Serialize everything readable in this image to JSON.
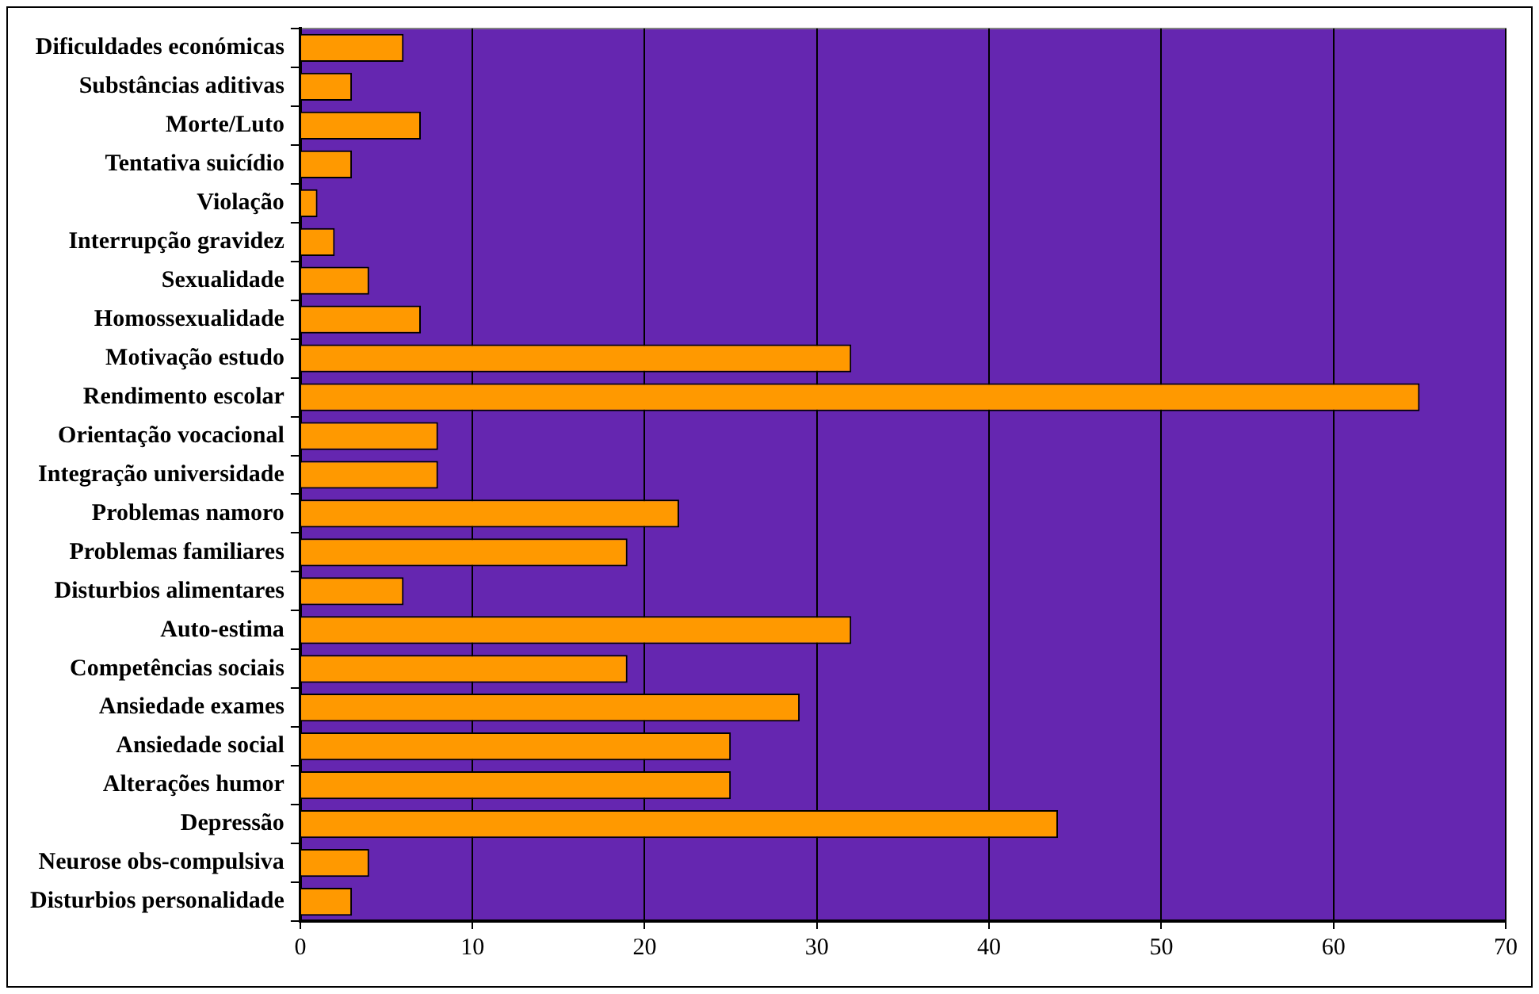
{
  "chart_data": {
    "type": "bar",
    "orientation": "horizontal",
    "categories": [
      "Dificuldades económicas",
      "Substâncias aditivas",
      "Morte/Luto",
      "Tentativa suicídio",
      "Violação",
      "Interrupção gravidez",
      "Sexualidade",
      "Homossexualidade",
      "Motivação estudo",
      "Rendimento escolar",
      "Orientação vocacional",
      "Integração universidade",
      "Problemas namoro",
      "Problemas familiares",
      "Disturbios alimentares",
      "Auto-estima",
      "Competências sociais",
      "Ansiedade exames",
      "Ansiedade social",
      "Alterações humor",
      "Depressão",
      "Neurose obs-compulsiva",
      "Disturbios personalidade"
    ],
    "values": [
      6,
      3,
      7,
      3,
      1,
      2,
      4,
      7,
      32,
      65,
      8,
      8,
      22,
      19,
      6,
      32,
      19,
      29,
      25,
      25,
      44,
      4,
      3
    ],
    "color": "#ff9900",
    "xlim": [
      0,
      70
    ],
    "xticks": [
      0,
      10,
      20,
      30,
      40,
      50,
      60,
      70
    ],
    "grid": "x",
    "legend": false
  }
}
